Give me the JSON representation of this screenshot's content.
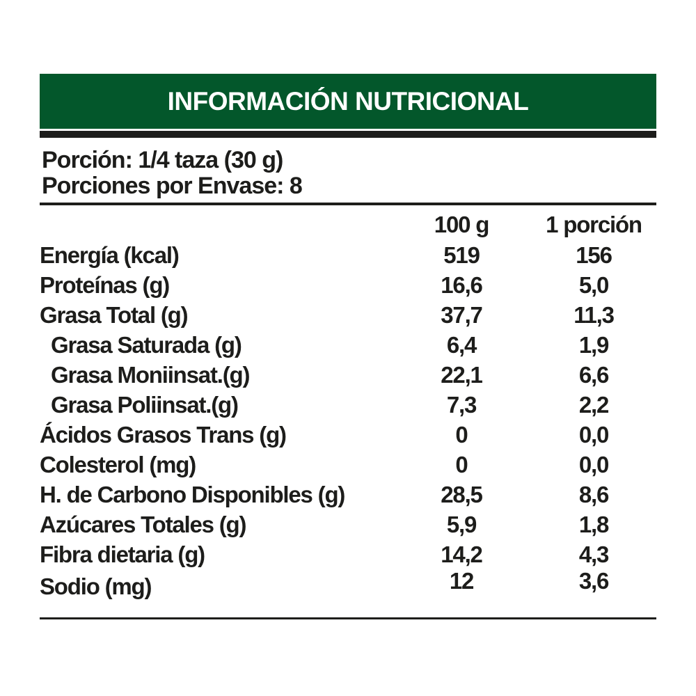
{
  "title": "INFORMACIÓN NUTRICIONAL",
  "serving": {
    "line1": "Porción: 1/4 taza (30 g)",
    "line2": "Porciones por Envase: 8"
  },
  "columns": [
    "100 g",
    "1 porción"
  ],
  "rows": [
    {
      "label": "Energía (kcal)",
      "per_100g": "519",
      "per_serving": "156",
      "indent": false
    },
    {
      "label": "Proteínas (g)",
      "per_100g": "16,6",
      "per_serving": "5,0",
      "indent": false
    },
    {
      "label": "Grasa Total (g)",
      "per_100g": "37,7",
      "per_serving": "11,3",
      "indent": false
    },
    {
      "label": "Grasa Saturada (g)",
      "per_100g": "6,4",
      "per_serving": "1,9",
      "indent": true
    },
    {
      "label": "Grasa Moniinsat.(g)",
      "per_100g": "22,1",
      "per_serving": "6,6",
      "indent": true
    },
    {
      "label": "Grasa Poliinsat.(g)",
      "per_100g": "7,3",
      "per_serving": "2,2",
      "indent": true
    },
    {
      "label": "Ácidos Grasos Trans (g)",
      "per_100g": "0",
      "per_serving": "0,0",
      "indent": false
    },
    {
      "label": "Colesterol (mg)",
      "per_100g": "0",
      "per_serving": "0,0",
      "indent": false
    },
    {
      "label": "H. de Carbono Disponibles (g)",
      "per_100g": "28,5",
      "per_serving": "8,6",
      "indent": false
    },
    {
      "label": "Azúcares Totales (g)",
      "per_100g": "5,9",
      "per_serving": "1,8",
      "indent": false
    },
    {
      "label": "Fibra dietaria (g)",
      "per_100g": "14,2",
      "per_serving": "4,3",
      "indent": false
    },
    {
      "label": "Sodio (mg)",
      "per_100g": "12",
      "per_serving": "3,6",
      "indent": false
    }
  ],
  "colors": {
    "header_green": "#03572b",
    "bar_black": "#1d1d1b",
    "text": "#1d1d1b",
    "background": "#ffffff"
  }
}
